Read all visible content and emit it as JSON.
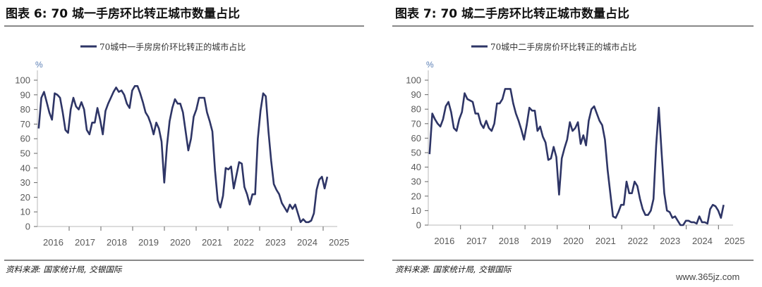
{
  "watermark": "www.365jz.com",
  "colors": {
    "line": "#2e3566",
    "axis": "#d0d0d0",
    "tick_text": "#595959"
  },
  "chart_data": [
    {
      "type": "line",
      "title": "图表 6: 70 城一手房环比转正城市数量占比",
      "legend": "70城中一手房房价环比转正的城市占比",
      "legend_position": "top-center",
      "ylabel": "%",
      "source": "资料来源: 国家统计局, 交银国际",
      "ylim": [
        0,
        100
      ],
      "yticks": [
        "0",
        "10",
        "20",
        "30",
        "40",
        "50",
        "60",
        "70",
        "80",
        "90",
        "100"
      ],
      "xticks": [
        "2016",
        "2017",
        "2018",
        "2019",
        "2020",
        "2021",
        "2022",
        "2023",
        "2024",
        "2025"
      ],
      "x_start": 2016.04,
      "x_end": 2025.13,
      "grid": false,
      "series": [
        {
          "name": "70城中一手房房价环比转正的城市占比",
          "values": [
            67,
            88,
            92,
            85,
            78,
            73,
            91,
            90,
            88,
            78,
            66,
            64,
            80,
            88,
            82,
            80,
            85,
            80,
            66,
            63,
            71,
            71,
            81,
            73,
            63,
            79,
            84,
            88,
            92,
            95,
            92,
            93,
            90,
            84,
            81,
            93,
            96,
            96,
            91,
            85,
            78,
            75,
            70,
            63,
            71,
            67,
            58,
            30,
            55,
            72,
            81,
            87,
            84,
            84,
            78,
            65,
            52,
            60,
            75,
            80,
            88,
            88,
            88,
            78,
            72,
            65,
            38,
            18,
            13,
            21,
            40,
            39,
            41,
            26,
            35,
            44,
            43,
            27,
            22,
            15,
            22,
            22,
            60,
            79,
            91,
            89,
            65,
            45,
            29,
            25,
            22,
            16,
            13,
            10,
            15,
            12,
            15,
            9,
            3,
            5,
            3,
            3,
            4,
            9,
            25,
            32,
            34,
            26,
            34
          ]
        }
      ]
    },
    {
      "type": "line",
      "title": "图表 7: 70 城二手房环比转正城市数量占比",
      "legend": "70城中二手房房价环比转正的城市占比",
      "legend_position": "top-center",
      "ylabel": "%",
      "source": "资料来源: 国家统计局, 交银国际",
      "ylim": [
        0,
        100
      ],
      "yticks": [
        "0",
        "10",
        "20",
        "30",
        "40",
        "50",
        "60",
        "70",
        "80",
        "90",
        "100"
      ],
      "xticks": [
        "2016",
        "2017",
        "2018",
        "2019",
        "2020",
        "2021",
        "2022",
        "2023",
        "2024",
        "2025"
      ],
      "x_start": 2016.04,
      "x_end": 2025.16,
      "grid": false,
      "series": [
        {
          "name": "70城中二手房房价环比转正的城市占比",
          "values": [
            49,
            77,
            73,
            70,
            68,
            73,
            82,
            85,
            78,
            67,
            65,
            73,
            78,
            91,
            87,
            86,
            85,
            77,
            77,
            70,
            67,
            72,
            67,
            65,
            70,
            84,
            84,
            87,
            94,
            94,
            94,
            84,
            77,
            72,
            66,
            59,
            69,
            81,
            79,
            79,
            65,
            68,
            61,
            57,
            45,
            46,
            54,
            47,
            21,
            46,
            53,
            59,
            71,
            65,
            67,
            71,
            56,
            62,
            55,
            72,
            80,
            82,
            77,
            72,
            69,
            59,
            38,
            22,
            6,
            5,
            9,
            14,
            14,
            30,
            22,
            22,
            30,
            27,
            18,
            11,
            7,
            7,
            10,
            18,
            55,
            81,
            50,
            22,
            10,
            9,
            5,
            6,
            3,
            0,
            0,
            3,
            3,
            2,
            2,
            1,
            6,
            2,
            2,
            1,
            11,
            14,
            13,
            10,
            5,
            14
          ]
        }
      ]
    }
  ]
}
